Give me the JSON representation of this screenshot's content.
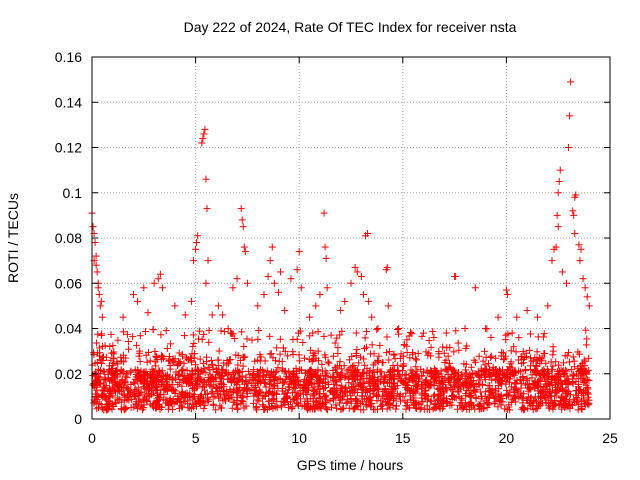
{
  "chart_data": {
    "type": "scatter",
    "title": "Day 222 of 2024, Rate Of TEC Index for receiver nsta",
    "xlabel": "GPS time / hours",
    "ylabel": "ROTI / TECUs",
    "xlim": [
      0,
      25
    ],
    "ylim": [
      0,
      0.16
    ],
    "xticks": [
      0,
      5,
      10,
      15,
      20,
      25
    ],
    "yticks": [
      0,
      0.02,
      0.04,
      0.06,
      0.08,
      0.1,
      0.12,
      0.14,
      0.16
    ],
    "grid": true,
    "marker": "+",
    "series_color": "#ff0000",
    "series": [
      {
        "name": "ROTI",
        "points": [
          [
            0.0,
            0.091
          ],
          [
            0.05,
            0.085
          ],
          [
            0.1,
            0.082
          ],
          [
            0.15,
            0.078
          ],
          [
            0.2,
            0.072
          ],
          [
            0.25,
            0.065
          ],
          [
            0.3,
            0.06
          ],
          [
            0.35,
            0.055
          ],
          [
            0.4,
            0.05
          ],
          [
            0.5,
            0.045
          ],
          [
            0.1,
            0.07
          ],
          [
            0.2,
            0.068
          ],
          [
            0.3,
            0.058
          ],
          [
            0.45,
            0.052
          ],
          [
            1.5,
            0.045
          ],
          [
            2.0,
            0.055
          ],
          [
            2.2,
            0.052
          ],
          [
            2.5,
            0.058
          ],
          [
            2.7,
            0.047
          ],
          [
            3.0,
            0.06
          ],
          [
            3.2,
            0.062
          ],
          [
            3.3,
            0.064
          ],
          [
            3.4,
            0.058
          ],
          [
            4.0,
            0.05
          ],
          [
            4.5,
            0.046
          ],
          [
            4.8,
            0.052
          ],
          [
            4.9,
            0.07
          ],
          [
            5.0,
            0.075
          ],
          [
            5.05,
            0.078
          ],
          [
            5.1,
            0.081
          ],
          [
            5.3,
            0.122
          ],
          [
            5.35,
            0.124
          ],
          [
            5.4,
            0.126
          ],
          [
            5.45,
            0.128
          ],
          [
            5.5,
            0.106
          ],
          [
            5.55,
            0.093
          ],
          [
            5.6,
            0.07
          ],
          [
            5.5,
            0.06
          ],
          [
            5.8,
            0.046
          ],
          [
            6.1,
            0.05
          ],
          [
            6.3,
            0.046
          ],
          [
            6.8,
            0.058
          ],
          [
            7.0,
            0.062
          ],
          [
            7.2,
            0.093
          ],
          [
            7.25,
            0.088
          ],
          [
            7.3,
            0.085
          ],
          [
            7.35,
            0.076
          ],
          [
            7.4,
            0.074
          ],
          [
            7.5,
            0.06
          ],
          [
            8.0,
            0.05
          ],
          [
            8.3,
            0.055
          ],
          [
            8.5,
            0.063
          ],
          [
            8.6,
            0.07
          ],
          [
            8.7,
            0.076
          ],
          [
            8.8,
            0.06
          ],
          [
            9.0,
            0.056
          ],
          [
            9.1,
            0.065
          ],
          [
            9.3,
            0.048
          ],
          [
            9.6,
            0.062
          ],
          [
            9.9,
            0.066
          ],
          [
            10.0,
            0.074
          ],
          [
            10.1,
            0.058
          ],
          [
            10.5,
            0.045
          ],
          [
            10.8,
            0.05
          ],
          [
            11.0,
            0.055
          ],
          [
            11.2,
            0.091
          ],
          [
            11.25,
            0.076
          ],
          [
            11.3,
            0.071
          ],
          [
            11.35,
            0.058
          ],
          [
            12.0,
            0.048
          ],
          [
            12.2,
            0.052
          ],
          [
            12.5,
            0.06
          ],
          [
            12.7,
            0.067
          ],
          [
            12.8,
            0.065
          ],
          [
            13.0,
            0.063
          ],
          [
            13.1,
            0.055
          ],
          [
            13.2,
            0.081
          ],
          [
            13.3,
            0.082
          ],
          [
            13.35,
            0.052
          ],
          [
            13.5,
            0.045
          ],
          [
            13.8,
            0.04
          ],
          [
            14.2,
            0.066
          ],
          [
            14.25,
            0.067
          ],
          [
            14.3,
            0.05
          ],
          [
            14.8,
            0.04
          ],
          [
            15.2,
            0.035
          ],
          [
            16.0,
            0.038
          ],
          [
            16.5,
            0.036
          ],
          [
            17.1,
            0.038
          ],
          [
            17.5,
            0.063
          ],
          [
            17.55,
            0.063
          ],
          [
            18.0,
            0.04
          ],
          [
            18.5,
            0.058
          ],
          [
            19.0,
            0.04
          ],
          [
            19.6,
            0.045
          ],
          [
            20.0,
            0.057
          ],
          [
            20.05,
            0.055
          ],
          [
            20.5,
            0.045
          ],
          [
            21.0,
            0.048
          ],
          [
            21.5,
            0.045
          ],
          [
            22.0,
            0.05
          ],
          [
            22.2,
            0.07
          ],
          [
            22.3,
            0.075
          ],
          [
            22.4,
            0.076
          ],
          [
            22.45,
            0.09
          ],
          [
            22.5,
            0.1
          ],
          [
            22.55,
            0.105
          ],
          [
            22.6,
            0.11
          ],
          [
            22.5,
            0.085
          ],
          [
            22.7,
            0.065
          ],
          [
            22.9,
            0.06
          ],
          [
            23.0,
            0.12
          ],
          [
            23.05,
            0.134
          ],
          [
            23.1,
            0.149
          ],
          [
            23.2,
            0.092
          ],
          [
            23.25,
            0.09
          ],
          [
            23.3,
            0.098
          ],
          [
            23.35,
            0.099
          ],
          [
            23.3,
            0.082
          ],
          [
            23.5,
            0.077
          ],
          [
            23.6,
            0.075
          ],
          [
            23.55,
            0.07
          ],
          [
            23.7,
            0.062
          ],
          [
            23.8,
            0.058
          ],
          [
            23.9,
            0.054
          ],
          [
            24.0,
            0.05
          ]
        ]
      }
    ]
  }
}
